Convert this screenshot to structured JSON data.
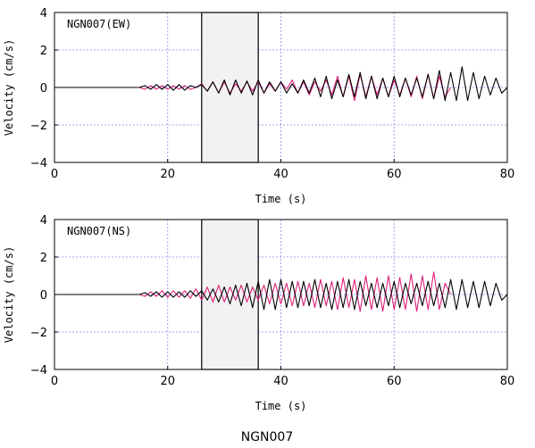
{
  "figure_title": "NGN007",
  "colors": {
    "trace_a": "#000000",
    "trace_b": "#e0207a",
    "grid": "#8888ee",
    "window_fill": "#f2f2f2"
  },
  "chart_data": [
    {
      "type": "line",
      "panel_label": "NGN007(EW)",
      "xlabel": "Time (s)",
      "ylabel": "Velocity (cm/s)",
      "xlim": [
        0,
        80
      ],
      "ylim": [
        -4,
        4
      ],
      "xticks": [
        0,
        20,
        40,
        60,
        80
      ],
      "yticks": [
        -4,
        -2,
        0,
        2,
        4
      ],
      "xtick_labels": [
        "0",
        "20",
        "40",
        "60",
        "80"
      ],
      "ytick_labels": [
        "−4",
        "−2",
        "0",
        "2",
        "4"
      ],
      "grid": true,
      "highlight_window": [
        26,
        36
      ],
      "series": [
        {
          "color": "#000000",
          "x": [
            0,
            15,
            16,
            17,
            18,
            19,
            20,
            21,
            22,
            23,
            24,
            25,
            26,
            27,
            28,
            29,
            30,
            31,
            32,
            33,
            34,
            35,
            36,
            37,
            38,
            39,
            40,
            41,
            42,
            43,
            44,
            45,
            46,
            47,
            48,
            49,
            50,
            51,
            52,
            53,
            54,
            55,
            56,
            57,
            58,
            59,
            60,
            61,
            62,
            63,
            64,
            65,
            66,
            67,
            68,
            69,
            70,
            71,
            72,
            73,
            74,
            75,
            76,
            77,
            78,
            79,
            80
          ],
          "y": [
            0,
            0,
            0.1,
            -0.1,
            0.15,
            -0.1,
            0.15,
            -0.15,
            0.15,
            -0.15,
            0.1,
            0,
            0.15,
            -0.2,
            0.3,
            -0.3,
            0.4,
            -0.4,
            0.4,
            -0.3,
            0.35,
            -0.4,
            0.4,
            -0.3,
            0.3,
            -0.2,
            0.3,
            -0.3,
            0.2,
            -0.3,
            0.4,
            -0.3,
            0.5,
            -0.5,
            0.6,
            -0.6,
            0.4,
            -0.5,
            0.7,
            -0.5,
            0.8,
            -0.6,
            0.6,
            -0.6,
            0.5,
            -0.5,
            0.6,
            -0.5,
            0.5,
            -0.4,
            0.5,
            -0.5,
            0.7,
            -0.6,
            0.9,
            -0.7,
            0.8,
            -0.7,
            1.1,
            -0.7,
            0.8,
            -0.6,
            0.6,
            -0.4,
            0.5,
            -0.3,
            0
          ]
        },
        {
          "color": "#e0207a",
          "x": [
            0,
            15,
            16,
            17,
            18,
            19,
            20,
            21,
            22,
            23,
            24,
            25,
            26,
            27,
            28,
            29,
            30,
            31,
            32,
            33,
            34,
            35,
            36,
            37,
            38,
            39,
            40,
            41,
            42,
            43,
            44,
            45,
            46,
            47,
            48,
            49,
            50,
            51,
            52,
            53,
            54,
            55,
            56,
            57,
            58,
            59,
            60,
            61,
            62,
            63,
            64,
            65,
            66,
            67,
            68,
            69,
            70
          ],
          "y": [
            0,
            0,
            -0.1,
            0.1,
            -0.1,
            0.1,
            -0.1,
            0.1,
            -0.1,
            0.1,
            -0.1,
            0,
            0.2,
            -0.2,
            0.3,
            -0.3,
            0.3,
            -0.3,
            0.2,
            -0.2,
            0.3,
            -0.2,
            0.3,
            -0.3,
            0.2,
            -0.2,
            0.3,
            -0.1,
            0.4,
            -0.3,
            0.3,
            -0.4,
            0.3,
            -0.2,
            0.4,
            -0.4,
            0.6,
            -0.5,
            0.6,
            -0.7,
            0.7,
            -0.5,
            0.6,
            -0.4,
            0.5,
            -0.5,
            0.4,
            -0.4,
            0.5,
            -0.5,
            0.6,
            -0.6,
            0.7,
            -0.6,
            0.6,
            -0.5,
            0
          ]
        }
      ]
    },
    {
      "type": "line",
      "panel_label": "NGN007(NS)",
      "xlabel": "Time (s)",
      "ylabel": "Velocity (cm/s)",
      "xlim": [
        0,
        80
      ],
      "ylim": [
        -4,
        4
      ],
      "xticks": [
        0,
        20,
        40,
        60,
        80
      ],
      "yticks": [
        -4,
        -2,
        0,
        2,
        4
      ],
      "xtick_labels": [
        "0",
        "20",
        "40",
        "60",
        "80"
      ],
      "ytick_labels": [
        "−4",
        "−2",
        "0",
        "2",
        "4"
      ],
      "grid": true,
      "highlight_window": [
        26,
        36
      ],
      "series": [
        {
          "color": "#000000",
          "x": [
            0,
            15,
            16,
            17,
            18,
            19,
            20,
            21,
            22,
            23,
            24,
            25,
            26,
            27,
            28,
            29,
            30,
            31,
            32,
            33,
            34,
            35,
            36,
            37,
            38,
            39,
            40,
            41,
            42,
            43,
            44,
            45,
            46,
            47,
            48,
            49,
            50,
            51,
            52,
            53,
            54,
            55,
            56,
            57,
            58,
            59,
            60,
            61,
            62,
            63,
            64,
            65,
            66,
            67,
            68,
            69,
            70,
            71,
            72,
            73,
            74,
            75,
            76,
            77,
            78,
            79,
            80
          ],
          "y": [
            0,
            0,
            0.1,
            -0.1,
            0.15,
            -0.15,
            0.15,
            -0.15,
            0.15,
            -0.15,
            0.2,
            -0.1,
            0.2,
            -0.3,
            0.3,
            -0.4,
            0.4,
            -0.5,
            0.5,
            -0.6,
            0.6,
            -0.7,
            0.7,
            -0.8,
            0.8,
            -0.8,
            0.8,
            -0.7,
            0.7,
            -0.7,
            0.7,
            -0.6,
            0.8,
            -0.7,
            0.6,
            -0.8,
            0.7,
            -0.7,
            0.8,
            -0.8,
            0.7,
            -0.6,
            0.6,
            -0.7,
            0.6,
            -0.6,
            0.7,
            -0.7,
            0.6,
            -0.5,
            0.6,
            -0.6,
            0.7,
            -0.6,
            0.6,
            -0.7,
            0.8,
            -0.8,
            0.8,
            -0.7,
            0.7,
            -0.7,
            0.7,
            -0.6,
            0.6,
            -0.3,
            0
          ]
        },
        {
          "color": "#e0207a",
          "x": [
            0,
            15,
            16,
            17,
            18,
            19,
            20,
            21,
            22,
            23,
            24,
            25,
            26,
            27,
            28,
            29,
            30,
            31,
            32,
            33,
            34,
            35,
            36,
            37,
            38,
            39,
            40,
            41,
            42,
            43,
            44,
            45,
            46,
            47,
            48,
            49,
            50,
            51,
            52,
            53,
            54,
            55,
            56,
            57,
            58,
            59,
            60,
            61,
            62,
            63,
            64,
            65,
            66,
            67,
            68,
            69,
            70
          ],
          "y": [
            0,
            0,
            -0.1,
            0.15,
            -0.1,
            0.2,
            -0.15,
            0.2,
            -0.15,
            0.2,
            -0.2,
            0.3,
            -0.3,
            0.4,
            -0.4,
            0.5,
            -0.4,
            0.4,
            -0.3,
            0.5,
            -0.4,
            0.4,
            -0.3,
            0.5,
            -0.5,
            0.6,
            -0.5,
            0.6,
            -0.6,
            0.7,
            -0.6,
            0.6,
            -0.7,
            0.8,
            -0.6,
            0.7,
            -0.8,
            0.9,
            -0.7,
            0.8,
            -0.9,
            1.0,
            -0.8,
            0.9,
            -0.9,
            1.0,
            -0.8,
            0.9,
            -0.8,
            1.1,
            -0.9,
            1.0,
            -0.8,
            1.2,
            -0.8,
            0.6,
            0
          ]
        }
      ]
    }
  ]
}
